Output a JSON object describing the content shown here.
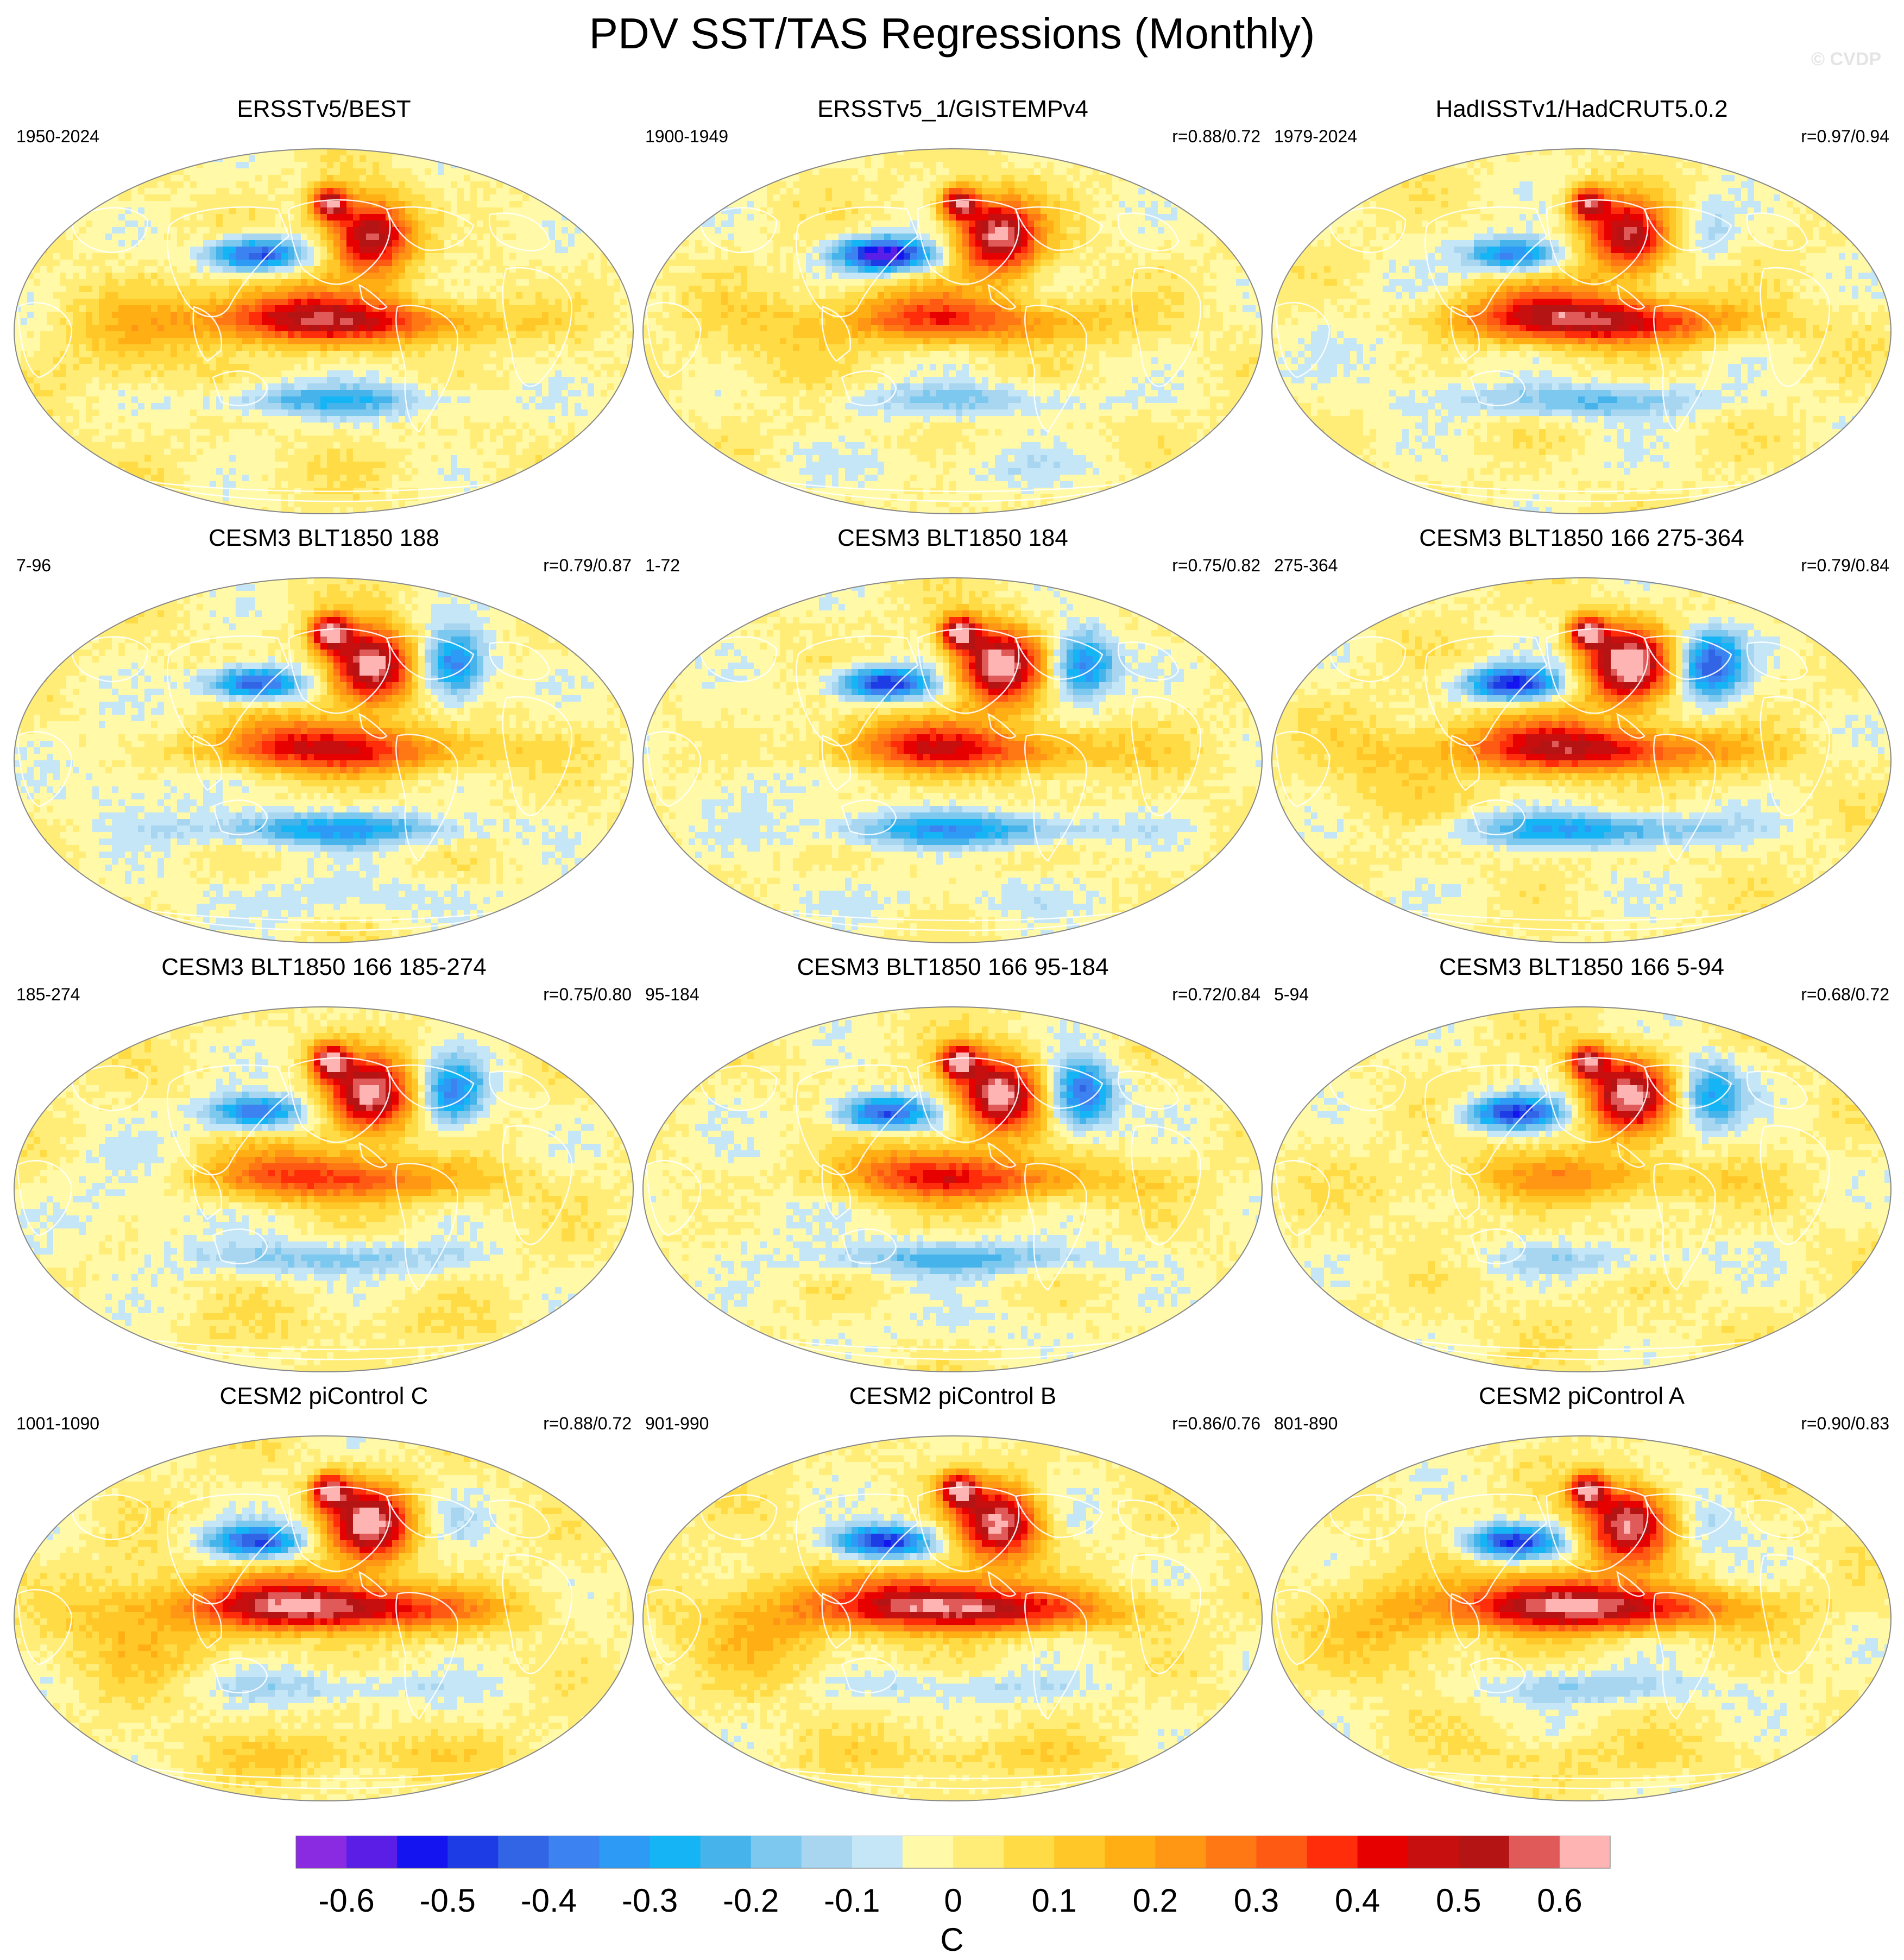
{
  "title": "PDV SST/TAS Regressions (Monthly)",
  "watermark": "© CVDP",
  "chart_data": {
    "type": "map",
    "title": "PDV SST/TAS Regressions (Monthly)",
    "units": "C",
    "colorbar": {
      "levels": [
        -0.65,
        -0.6,
        -0.55,
        -0.5,
        -0.45,
        -0.4,
        -0.35,
        -0.3,
        -0.25,
        -0.2,
        -0.15,
        -0.1,
        -0.05,
        0,
        0.05,
        0.1,
        0.15,
        0.2,
        0.25,
        0.3,
        0.35,
        0.4,
        0.45,
        0.5,
        0.55,
        0.6,
        0.65
      ],
      "tick_labels": [
        "-0.6",
        "-0.5",
        "-0.4",
        "-0.3",
        "-0.2",
        "-0.1",
        "0",
        "0.1",
        "0.2",
        "0.3",
        "0.4",
        "0.5",
        "0.6"
      ],
      "tick_values": [
        -0.6,
        -0.5,
        -0.4,
        -0.3,
        -0.2,
        -0.1,
        0,
        0.1,
        0.2,
        0.3,
        0.4,
        0.5,
        0.6
      ],
      "colors": [
        "#8a2be2",
        "#5a1ee6",
        "#1414f0",
        "#1e3ce6",
        "#3264e6",
        "#3c82f0",
        "#2d9bf5",
        "#14b4f5",
        "#46b4eb",
        "#7dc8ee",
        "#a8d5f0",
        "#c4e6f6",
        "#fff9a8",
        "#ffed78",
        "#ffdc46",
        "#ffc828",
        "#ffaf14",
        "#ff9614",
        "#ff7814",
        "#ff5a14",
        "#ff2d0a",
        "#e60000",
        "#c80f0f",
        "#b41414",
        "#e05a5a",
        "#ffb4b4"
      ],
      "label": "C"
    },
    "panels": [
      {
        "name": "ERSSTv5/BEST",
        "years": "1950-2024",
        "r": "",
        "pattern": {
          "npo": 0.6,
          "kuro": -0.48,
          "trop": 0.42,
          "scf": -0.22,
          "atl": -0.04,
          "ind": 0.1,
          "so": 0.02
        }
      },
      {
        "name": "ERSSTv5_1/GISTEMPv4",
        "years": "1900-1949",
        "r": "r=0.88/0.72",
        "pattern": {
          "npo": 0.62,
          "kuro": -0.62,
          "trop": 0.28,
          "scf": -0.15,
          "atl": 0.02,
          "ind": 0.06,
          "so": -0.06
        }
      },
      {
        "name": "HadISSTv1/HadCRUT5.0.2",
        "years": "1979-2024",
        "r": "r=0.97/0.94",
        "pattern": {
          "npo": 0.55,
          "kuro": -0.4,
          "trop": 0.46,
          "scf": -0.2,
          "atl": -0.1,
          "ind": -0.06,
          "so": -0.02
        }
      },
      {
        "name": "CESM3 BLT1850 188",
        "years": "7-96",
        "r": "r=0.79/0.87",
        "pattern": {
          "npo": 0.68,
          "kuro": -0.48,
          "trop": 0.36,
          "scf": -0.3,
          "atl": -0.4,
          "ind": -0.08,
          "so": -0.08
        }
      },
      {
        "name": "CESM3 BLT1850 184",
        "years": "1-72",
        "r": "r=0.75/0.82",
        "pattern": {
          "npo": 0.68,
          "kuro": -0.5,
          "trop": 0.33,
          "scf": -0.3,
          "atl": -0.38,
          "ind": -0.06,
          "so": -0.06
        }
      },
      {
        "name": "CESM3 BLT1850 166 275-364",
        "years": "275-364",
        "r": "r=0.79/0.84",
        "pattern": {
          "npo": 0.68,
          "kuro": -0.52,
          "trop": 0.4,
          "scf": -0.3,
          "atl": -0.45,
          "ind": 0.08,
          "so": -0.02
        }
      },
      {
        "name": "CESM3 BLT1850 166 185-274",
        "years": "185-274",
        "r": "r=0.75/0.80",
        "pattern": {
          "npo": 0.64,
          "kuro": -0.42,
          "trop": 0.3,
          "scf": -0.18,
          "atl": -0.36,
          "ind": -0.08,
          "so": 0.04
        }
      },
      {
        "name": "CESM3 BLT1850 166 95-184",
        "years": "95-184",
        "r": "r=0.72/0.84",
        "pattern": {
          "npo": 0.66,
          "kuro": -0.46,
          "trop": 0.32,
          "scf": -0.22,
          "atl": -0.42,
          "ind": -0.06,
          "so": -0.04
        }
      },
      {
        "name": "CESM3 BLT1850 166 5-94",
        "years": "5-94",
        "r": "r=0.68/0.72",
        "pattern": {
          "npo": 0.62,
          "kuro": -0.48,
          "trop": 0.16,
          "scf": -0.1,
          "atl": -0.3,
          "ind": 0.02,
          "so": 0.02
        }
      },
      {
        "name": "CESM2 piControl C",
        "years": "1001-1090",
        "r": "r=0.88/0.72",
        "pattern": {
          "npo": 0.64,
          "kuro": -0.45,
          "trop": 0.5,
          "scf": -0.12,
          "atl": -0.06,
          "ind": 0.14,
          "so": 0.1
        }
      },
      {
        "name": "CESM2 piControl B",
        "years": "901-990",
        "r": "r=0.86/0.76",
        "pattern": {
          "npo": 0.62,
          "kuro": -0.52,
          "trop": 0.5,
          "scf": -0.1,
          "atl": -0.04,
          "ind": 0.14,
          "so": 0.08
        }
      },
      {
        "name": "CESM2 piControl A",
        "years": "801-890",
        "r": "r=0.90/0.83",
        "pattern": {
          "npo": 0.62,
          "kuro": -0.48,
          "trop": 0.5,
          "scf": -0.14,
          "atl": -0.1,
          "ind": 0.12,
          "so": 0.06
        }
      }
    ]
  }
}
